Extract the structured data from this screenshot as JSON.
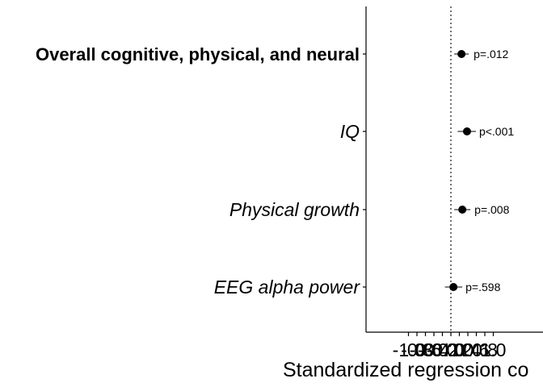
{
  "chart_data": {
    "type": "forest",
    "title": "",
    "xlabel": "Standardized regression co",
    "xlim": [
      -1.0,
      1.0
    ],
    "x_ticks": [
      {
        "value": -1.0,
        "label": "-1.0"
      },
      {
        "value": -0.8,
        "label": "-0.8"
      },
      {
        "value": -0.6,
        "label": "-0.6"
      },
      {
        "value": -0.4,
        "label": "-0.4"
      },
      {
        "value": -0.2,
        "label": "-0.2"
      },
      {
        "value": 0.0,
        "label": "0.0"
      },
      {
        "value": 0.2,
        "label": "0.2"
      },
      {
        "value": 0.4,
        "label": "0.4"
      },
      {
        "value": 0.6,
        "label": "0.6"
      },
      {
        "value": 0.8,
        "label": "0.8"
      },
      {
        "value": 1.0,
        "label": "1.0"
      }
    ],
    "reference_line": 0.0,
    "rows": [
      {
        "label": "Overall cognitive, physical, and neural",
        "estimate": 0.25,
        "ci": [
          0.08,
          0.42
        ],
        "p_label": "p=.012",
        "bold": true
      },
      {
        "label": "IQ",
        "estimate": 0.38,
        "ci": [
          0.16,
          0.59
        ],
        "p_label": "p<.001",
        "bold": false
      },
      {
        "label": "Physical growth",
        "estimate": 0.27,
        "ci": [
          0.08,
          0.46
        ],
        "p_label": "p=.008",
        "bold": false
      },
      {
        "label": "EEG alpha power",
        "estimate": 0.06,
        "ci": [
          -0.14,
          0.27
        ],
        "p_label": "p=.598",
        "bold": false
      }
    ]
  }
}
